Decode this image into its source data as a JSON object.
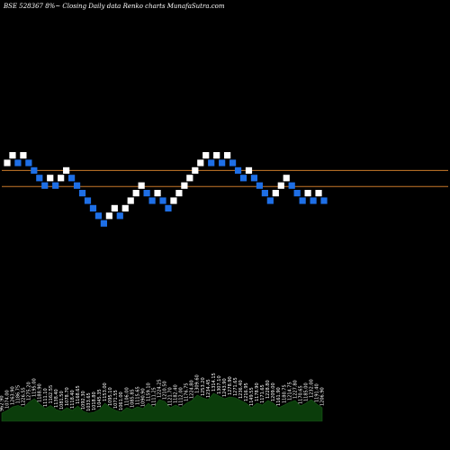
{
  "header": {
    "title": "BSE 528367 8%~  Closing Daily data  Renko  charts MunafaSutra.com"
  },
  "colors": {
    "background": "#000000",
    "up_brick": "#ffffff",
    "down_brick": "#1e6fe6",
    "reference_line": "#c8792a",
    "volume_fill": "#0b3d0b"
  },
  "chart_data": {
    "type": "renko",
    "reference_levels": [
      0.72,
      0.55
    ],
    "bricks": [
      {
        "dir": "up",
        "level": 0.8
      },
      {
        "dir": "up",
        "level": 0.88
      },
      {
        "dir": "down",
        "level": 0.8
      },
      {
        "dir": "up",
        "level": 0.88
      },
      {
        "dir": "down",
        "level": 0.8
      },
      {
        "dir": "down",
        "level": 0.72
      },
      {
        "dir": "down",
        "level": 0.64
      },
      {
        "dir": "down",
        "level": 0.56
      },
      {
        "dir": "up",
        "level": 0.64
      },
      {
        "dir": "down",
        "level": 0.56
      },
      {
        "dir": "up",
        "level": 0.64
      },
      {
        "dir": "up",
        "level": 0.72
      },
      {
        "dir": "down",
        "level": 0.64
      },
      {
        "dir": "down",
        "level": 0.56
      },
      {
        "dir": "down",
        "level": 0.48
      },
      {
        "dir": "down",
        "level": 0.4
      },
      {
        "dir": "down",
        "level": 0.32
      },
      {
        "dir": "down",
        "level": 0.24
      },
      {
        "dir": "down",
        "level": 0.16
      },
      {
        "dir": "up",
        "level": 0.24
      },
      {
        "dir": "up",
        "level": 0.32
      },
      {
        "dir": "down",
        "level": 0.24
      },
      {
        "dir": "up",
        "level": 0.32
      },
      {
        "dir": "up",
        "level": 0.4
      },
      {
        "dir": "up",
        "level": 0.48
      },
      {
        "dir": "up",
        "level": 0.56
      },
      {
        "dir": "down",
        "level": 0.48
      },
      {
        "dir": "down",
        "level": 0.4
      },
      {
        "dir": "up",
        "level": 0.48
      },
      {
        "dir": "down",
        "level": 0.4
      },
      {
        "dir": "down",
        "level": 0.32
      },
      {
        "dir": "up",
        "level": 0.4
      },
      {
        "dir": "up",
        "level": 0.48
      },
      {
        "dir": "up",
        "level": 0.56
      },
      {
        "dir": "up",
        "level": 0.64
      },
      {
        "dir": "up",
        "level": 0.72
      },
      {
        "dir": "up",
        "level": 0.8
      },
      {
        "dir": "up",
        "level": 0.88
      },
      {
        "dir": "down",
        "level": 0.8
      },
      {
        "dir": "up",
        "level": 0.88
      },
      {
        "dir": "down",
        "level": 0.8
      },
      {
        "dir": "up",
        "level": 0.88
      },
      {
        "dir": "down",
        "level": 0.8
      },
      {
        "dir": "down",
        "level": 0.72
      },
      {
        "dir": "down",
        "level": 0.64
      },
      {
        "dir": "up",
        "level": 0.72
      },
      {
        "dir": "down",
        "level": 0.64
      },
      {
        "dir": "down",
        "level": 0.56
      },
      {
        "dir": "down",
        "level": 0.48
      },
      {
        "dir": "down",
        "level": 0.4
      },
      {
        "dir": "up",
        "level": 0.48
      },
      {
        "dir": "up",
        "level": 0.56
      },
      {
        "dir": "up",
        "level": 0.64
      },
      {
        "dir": "down",
        "level": 0.56
      },
      {
        "dir": "down",
        "level": 0.48
      },
      {
        "dir": "down",
        "level": 0.4
      },
      {
        "dir": "up",
        "level": 0.48
      },
      {
        "dir": "down",
        "level": 0.4
      },
      {
        "dir": "up",
        "level": 0.48
      },
      {
        "dir": "down",
        "level": 0.4
      }
    ],
    "volume_labels": [
      "962.90",
      "1074.00",
      "1263.90",
      "1186.75",
      "1226.55",
      "1275.20",
      "1195.00",
      "1188.90",
      "1111.10",
      "1162.55",
      "1138.40",
      "1081.50",
      "1078.70",
      "1118.40",
      "1168.65",
      "1092.30",
      "1033.65",
      "1018.80",
      "1045.35",
      "1153.00",
      "1095.10",
      "1071.55",
      "1061.00",
      "1106.00",
      "1085.85",
      "1115.65",
      "1090.90",
      "1159.10",
      "1111.25",
      "1224.25",
      "1210.50",
      "1121.70",
      "1182.40",
      "1112.00",
      "1176.75",
      "1224.80",
      "1309.60",
      "1253.20",
      "1234.45",
      "1314.15",
      "1307.10",
      "1243.90",
      "1278.90",
      "1271.65",
      "1236.40",
      "1216.95",
      "1149.55",
      "1178.90",
      "1171.65",
      "1228.80",
      "1209.00",
      "1161.90",
      "1180.75",
      "1214.75",
      "1227.80",
      "1170.65",
      "1185.00",
      "1232.00",
      "1191.40",
      "1206.90"
    ],
    "volume_values": [
      0.18,
      0.24,
      0.32,
      0.35,
      0.3,
      0.42,
      0.5,
      0.38,
      0.28,
      0.35,
      0.26,
      0.22,
      0.3,
      0.24,
      0.34,
      0.22,
      0.18,
      0.2,
      0.26,
      0.4,
      0.3,
      0.24,
      0.2,
      0.3,
      0.26,
      0.32,
      0.28,
      0.4,
      0.3,
      0.48,
      0.44,
      0.3,
      0.36,
      0.3,
      0.4,
      0.46,
      0.58,
      0.52,
      0.48,
      0.62,
      0.56,
      0.5,
      0.54,
      0.52,
      0.46,
      0.4,
      0.3,
      0.4,
      0.36,
      0.46,
      0.4,
      0.3,
      0.36,
      0.42,
      0.46,
      0.34,
      0.4,
      0.48,
      0.38,
      0.3
    ]
  }
}
